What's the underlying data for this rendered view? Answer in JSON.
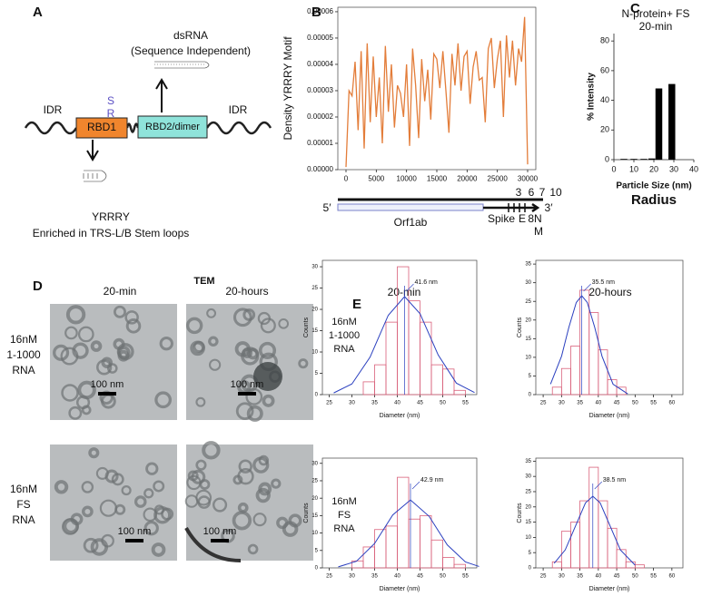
{
  "panel_labels": [
    "A",
    "B",
    "C",
    "D",
    "E"
  ],
  "panel_a": {
    "dsrna": "dsRNA",
    "dsrna_note": "(Sequence Independent)",
    "idr_left": "IDR",
    "rbd1": "RBD1",
    "sr": [
      "S",
      "R"
    ],
    "rbd2": "RBD2/dimer",
    "idr_right": "IDR",
    "motif": "YRRRY",
    "motif_note": "Enriched in TRS-L/B Stem loops"
  },
  "genome_map": {
    "five": "5′",
    "three": "3′",
    "orf1ab": "Orf1ab",
    "spike": "Spike",
    "top": [
      "3",
      "6",
      "7",
      "10"
    ],
    "e": "E",
    "eight_n": "8N",
    "m": "M"
  },
  "panel_d": {
    "title": "TEM",
    "columns": [
      "20-min",
      "20-hours"
    ],
    "rows": [
      [
        "16nM",
        "1-1000",
        "RNA"
      ],
      [
        "16nM",
        "FS",
        "RNA"
      ]
    ],
    "scale_bars": [
      "100 nm",
      "100 nm",
      "100 nm",
      "100 nm"
    ]
  },
  "panel_e": {
    "columns": [
      "20-min",
      "20-hours"
    ],
    "rows": [
      [
        "16nM",
        "1-1000",
        "RNA"
      ],
      [
        "16nM",
        "FS",
        "RNA"
      ]
    ]
  },
  "chart_data": [
    {
      "type": "line",
      "y_label": "Density YRRRY Motif",
      "x": [
        0,
        500,
        1000,
        1500,
        2000,
        2500,
        3000,
        3500,
        4000,
        4500,
        5000,
        5500,
        6000,
        6500,
        7000,
        7500,
        8000,
        8500,
        9000,
        9500,
        10000,
        10500,
        11000,
        11500,
        12000,
        12500,
        13000,
        13500,
        14000,
        14500,
        15000,
        15500,
        16000,
        16500,
        17000,
        17500,
        18000,
        18500,
        19000,
        19500,
        20000,
        20500,
        21000,
        21500,
        22000,
        22500,
        23000,
        23500,
        24000,
        24500,
        25000,
        25500,
        26000,
        26500,
        27000,
        27500,
        28000,
        28500,
        29000,
        29500,
        30000
      ],
      "series": [
        {
          "color": "#e37d3a",
          "values": [
            1e-06,
            3e-05,
            2.8e-05,
            4.1e-05,
            1.5e-05,
            4.5e-05,
            8e-06,
            4.8e-05,
            1.8e-05,
            4.3e-05,
            2e-05,
            3.5e-05,
            1e-05,
            4.7e-05,
            2.2e-05,
            4e-05,
            1.6e-05,
            3.2e-05,
            2.9e-05,
            2e-05,
            4e-05,
            9e-06,
            4.6e-05,
            3.2e-05,
            1.2e-05,
            4.2e-05,
            2.6e-05,
            3.8e-05,
            1.9e-05,
            4.4e-05,
            4.2e-05,
            3.1e-05,
            4.5e-05,
            3e-05,
            1.4e-05,
            4.4e-05,
            3.2e-05,
            4.8e-05,
            3e-05,
            4.3e-05,
            4.5e-05,
            2.5e-05,
            3.9e-05,
            4.5e-05,
            3.4e-05,
            3.5e-05,
            1.8e-05,
            4.6e-05,
            5e-05,
            3.1e-05,
            4.2e-05,
            4.9e-05,
            2e-05,
            5.1e-05,
            3.5e-05,
            4.9e-05,
            3.2e-05,
            4.6e-05,
            4.1e-05,
            5.8e-05,
            2e-06
          ]
        }
      ],
      "xlim": [
        -1350,
        31350
      ],
      "xticks": [
        0,
        5000,
        10000,
        15000,
        20000,
        25000,
        30000
      ],
      "ylim": [
        0,
        6.17e-05
      ],
      "yticks": [
        {
          "value": 0,
          "label": "0.00000"
        },
        {
          "value": 1e-05,
          "label": "0.00001"
        },
        {
          "value": 2e-05,
          "label": "0.00002"
        },
        {
          "value": 3e-05,
          "label": "0.00003"
        },
        {
          "value": 4e-05,
          "label": "0.00004"
        },
        {
          "value": 5e-05,
          "label": "0.00005"
        },
        {
          "value": 6e-05,
          "label": "0.00006"
        }
      ]
    },
    {
      "type": "bar",
      "title": [
        "N-protein+ FS",
        "20-min"
      ],
      "x_label": "Particle Size (nm)",
      "x_note": "Radius",
      "y_label": "% Intensity",
      "x": [
        5,
        10,
        15,
        19,
        22.5,
        29
      ],
      "values": [
        0.5,
        0.5,
        0.5,
        0.8,
        48,
        51
      ],
      "color": "#000000",
      "xlim": [
        0,
        40
      ],
      "xticks": [
        0,
        10,
        20,
        30,
        40
      ],
      "ylim": [
        0,
        85
      ],
      "yticks": [
        0,
        20,
        40,
        60,
        80
      ]
    },
    {
      "type": "histogram",
      "x_label": "Diameter (nm)",
      "y_label": "Counts",
      "color": "#d9607a",
      "bins": [
        32.5,
        35,
        37.5,
        40,
        42.5,
        45,
        47.5,
        50,
        52.5,
        55
      ],
      "values": [
        3,
        7,
        17,
        30,
        22,
        17,
        7,
        6,
        1
      ],
      "fit": {
        "color": "#2a3fbf",
        "x": [
          26,
          30,
          34,
          38,
          41.6,
          45,
          49,
          53,
          57
        ],
        "values": [
          0.4,
          2.5,
          8.8,
          18.6,
          23,
          19,
          9.3,
          2.7,
          0.5
        ]
      },
      "fit_label": {
        "value": 41.6,
        "label": "41.6 nm"
      },
      "xlim": [
        23.5,
        57.5
      ],
      "xticks": [
        25,
        30,
        35,
        40,
        45,
        50,
        55
      ],
      "ylim": [
        0,
        31.5
      ],
      "yticks": [
        0,
        5,
        10,
        15,
        20,
        25,
        30
      ]
    },
    {
      "type": "histogram",
      "x_label": "Diameter (nm)",
      "y_label": "Counts",
      "color": "#d9607a",
      "bins": [
        27.5,
        30,
        32.5,
        35,
        37.5,
        40,
        42.5,
        45,
        47.5
      ],
      "values": [
        2,
        7,
        13,
        28,
        22,
        12,
        4,
        2
      ],
      "fit": {
        "color": "#2a3fbf",
        "x": [
          27,
          30,
          32,
          34,
          35.5,
          37,
          39,
          41,
          44,
          48
        ],
        "values": [
          2.8,
          10.3,
          18.1,
          24.7,
          26.5,
          24.7,
          18.1,
          10.3,
          2.8,
          0.2
        ]
      },
      "fit_label": {
        "value": 35.5,
        "label": "35.5 nm"
      },
      "xlim": [
        23,
        63
      ],
      "xticks": [
        25,
        30,
        35,
        40,
        45,
        50,
        55,
        60
      ],
      "ylim": [
        0,
        36
      ],
      "yticks": [
        0,
        5,
        10,
        15,
        20,
        25,
        30,
        35
      ]
    },
    {
      "type": "histogram",
      "x_label": "Diameter (nm)",
      "y_label": "Counts",
      "color": "#d9607a",
      "bins": [
        30,
        32.5,
        35,
        37.5,
        40,
        42.5,
        45,
        47.5,
        50,
        52.5,
        55
      ],
      "values": [
        2,
        6,
        11,
        12,
        26,
        14,
        15,
        8,
        3,
        1
      ],
      "fit": {
        "color": "#2a3fbf",
        "x": [
          27,
          31,
          35,
          39,
          42.9,
          47,
          51,
          55,
          58
        ],
        "values": [
          0.3,
          1.9,
          7,
          15.2,
          19.5,
          14.8,
          6.6,
          1.7,
          0.4
        ]
      },
      "fit_label": {
        "value": 42.9,
        "label": "42.9 nm"
      },
      "xlim": [
        23.5,
        57.5
      ],
      "xticks": [
        25,
        30,
        35,
        40,
        45,
        50,
        55
      ],
      "ylim": [
        0,
        31.5
      ],
      "yticks": [
        0,
        5,
        10,
        15,
        20,
        25,
        30
      ]
    },
    {
      "type": "histogram",
      "x_label": "Diameter (nm)",
      "y_label": "Counts",
      "color": "#d9607a",
      "bins": [
        27.5,
        30,
        32.5,
        35,
        37.5,
        40,
        42.5,
        45,
        47.5,
        50,
        52.5
      ],
      "values": [
        2,
        12,
        15,
        22,
        33,
        22,
        13,
        6,
        2,
        1
      ],
      "fit": {
        "color": "#2a3fbf",
        "x": [
          28,
          31,
          34,
          36.5,
          38.5,
          40.5,
          43,
          46,
          50
        ],
        "values": [
          1.5,
          5.9,
          14.3,
          21.3,
          23.5,
          21.3,
          14.3,
          5.9,
          0.9
        ]
      },
      "fit_label": {
        "value": 38.5,
        "label": "38.5 nm"
      },
      "xlim": [
        23,
        63
      ],
      "xticks": [
        25,
        30,
        35,
        40,
        45,
        50,
        55,
        60
      ],
      "ylim": [
        0,
        36
      ],
      "yticks": [
        0,
        5,
        10,
        15,
        20,
        25,
        30,
        35
      ]
    }
  ]
}
